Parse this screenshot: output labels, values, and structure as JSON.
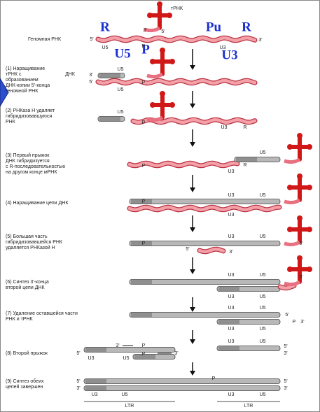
{
  "header": {
    "trna": "тРНК",
    "genome": "Геномная РНК",
    "big_labels": [
      "R",
      "U5",
      "P",
      "Pu",
      "R",
      "U3"
    ],
    "small_labels": [
      "3'",
      "5'",
      "5'",
      "3'",
      "U5",
      "P",
      "U3"
    ]
  },
  "steps": [
    {
      "lines": [
        "(1) Наращивание",
        "тРНК с",
        "образованием",
        "ДНК-копии 5'-конца",
        "геномной РНК"
      ],
      "labels": [
        "ДНК",
        "U5",
        "3'",
        "5'",
        "P",
        "U5"
      ]
    },
    {
      "lines": [
        "(2) РНКаза Н удаляет",
        "гибридизовавшуюся",
        "РНК"
      ],
      "labels": [
        "U5",
        "P",
        "U3",
        "R"
      ]
    },
    {
      "lines": [
        "(3) Первый прыжок",
        "ДНК гибридизуется",
        "с R-последовательностью",
        "на другом конце мРНК"
      ],
      "labels": [
        "U5",
        "P",
        "U3",
        "R"
      ]
    },
    {
      "lines": [
        "(4) Наращивание цепи ДНК"
      ],
      "labels": [
        "U3",
        "U5",
        "P",
        "U3"
      ]
    },
    {
      "lines": [
        "(5) Большая часть",
        "гибридизовавшейся РНК",
        "удаляется РНКазой Н"
      ],
      "labels": [
        "U3",
        "U5",
        "P",
        "5'",
        "3'",
        "5'"
      ]
    },
    {
      "lines": [
        "(6) Синтез 3'-конца",
        "второй цепи ДНК"
      ],
      "labels": [
        "U3",
        "U5",
        "U3",
        "U5",
        "5'"
      ]
    },
    {
      "lines": [
        "(7) Удаление оставшейся части",
        "РНК и тРНК"
      ],
      "labels": [
        "U3",
        "U5",
        "U3",
        "U5",
        "5'",
        "P",
        "3'"
      ]
    },
    {
      "lines": [
        "(8) Второй прыжок"
      ],
      "labels": [
        "3'",
        "5'",
        "U3",
        "U5",
        "P",
        "P",
        "3'",
        "U3",
        "U5",
        "5'",
        "3'"
      ]
    },
    {
      "lines": [
        "(9) Синтез обеих",
        "цепей завершен"
      ],
      "labels": [
        "5'",
        "3'",
        "U3",
        "U5",
        "P",
        "U3",
        "U5",
        "5'",
        "3'"
      ]
    }
  ],
  "ltr": [
    "LTR",
    "LTR"
  ]
}
